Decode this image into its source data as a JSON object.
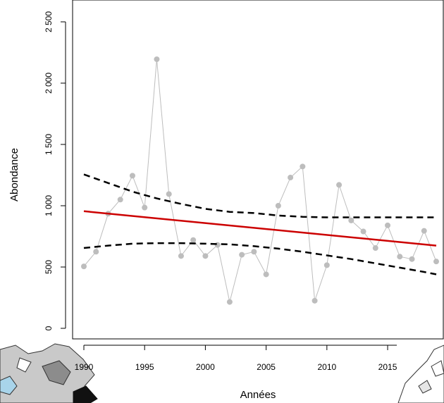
{
  "chart_data": {
    "type": "line",
    "title": "",
    "xlabel": "Années",
    "ylabel": "Abondance",
    "xlim": [
      1990,
      2019
    ],
    "ylim": [
      0,
      2500
    ],
    "x_ticks": [
      1990,
      1995,
      2000,
      2005,
      2010,
      2015
    ],
    "x_tick_labels": [
      "1990",
      "1995",
      "2000",
      "2005",
      "2010",
      "2015"
    ],
    "y_ticks": [
      0,
      500,
      1000,
      1500,
      2000,
      2500
    ],
    "y_tick_labels": [
      "0",
      "500",
      "1 000",
      "1 500",
      "2 000",
      "2 500"
    ],
    "grid": false,
    "series": [
      {
        "role": "observed",
        "color": "#bdbdbd",
        "x": [
          1990,
          1991,
          1992,
          1993,
          1994,
          1995,
          1996,
          1997,
          1998,
          1999,
          2000,
          2001,
          2002,
          2003,
          2004,
          2005,
          2006,
          2007,
          2008,
          2009,
          2010,
          2011,
          2012,
          2013,
          2014,
          2015,
          2016,
          2017,
          2018,
          2019
        ],
        "y": [
          505,
          625,
          935,
          1050,
          1245,
          985,
          2195,
          1095,
          590,
          720,
          590,
          680,
          215,
          600,
          625,
          440,
          1000,
          1230,
          1320,
          225,
          515,
          1170,
          880,
          790,
          655,
          840,
          585,
          565,
          795,
          545
        ]
      },
      {
        "role": "trend",
        "color": "#cc0000",
        "x": [
          1990,
          2019
        ],
        "y": [
          955,
          675
        ]
      },
      {
        "role": "upper-bound",
        "color": "#000000",
        "x": [
          1990,
          1992,
          1994,
          1996,
          1998,
          2000,
          2002,
          2004,
          2006,
          2008,
          2010,
          2012,
          2014,
          2016,
          2018,
          2019
        ],
        "y": [
          1255,
          1185,
          1115,
          1060,
          1015,
          975,
          950,
          940,
          920,
          910,
          905,
          905,
          905,
          905,
          905,
          905
        ]
      },
      {
        "role": "lower-bound",
        "color": "#000000",
        "x": [
          1990,
          1992,
          1994,
          1996,
          1998,
          2000,
          2002,
          2004,
          2006,
          2008,
          2010,
          2012,
          2014,
          2016,
          2018,
          2019
        ],
        "y": [
          655,
          675,
          690,
          695,
          695,
          690,
          685,
          670,
          650,
          625,
          595,
          565,
          530,
          495,
          460,
          440
        ]
      }
    ]
  }
}
